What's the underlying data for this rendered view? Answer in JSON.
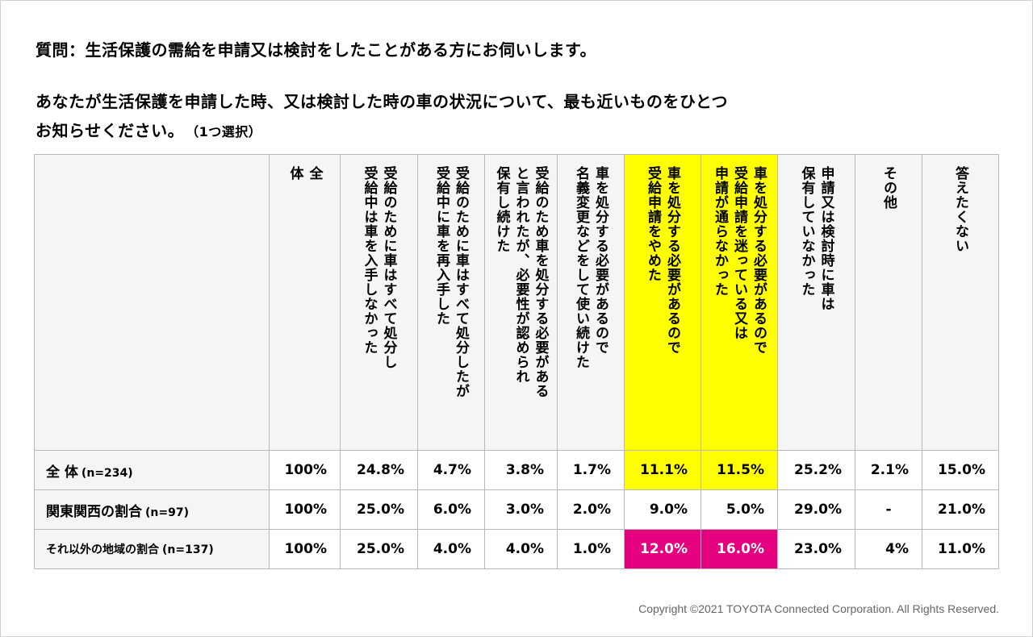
{
  "question_line1": "質問：生活保護の需給を申請又は検討をしたことがある方にお伺いします。",
  "question_line2": "あなたが生活保護を申請した時、又は検討した時の車の状況について、最も近いものをひとつ",
  "question_line3": "お知らせください。",
  "question_note": "（1つ選択）",
  "columns": [
    {
      "lines": [
        "全",
        "体"
      ]
    },
    {
      "lines": [
        "受給のために車はすべて処分し",
        "受給中は車を入手しなかった"
      ]
    },
    {
      "lines": [
        "受給のために車はすべて処分したが",
        "受給中に車を再入手した"
      ]
    },
    {
      "lines": [
        "受給のため車を処分する必要がある",
        "と言われたが、必要性が認められ",
        "保有し続けた"
      ]
    },
    {
      "lines": [
        "車を処分する必要があるので",
        "名義変更などをして使い続けた"
      ]
    },
    {
      "lines": [
        "車を処分する必要があるので",
        "受給申請をやめた"
      ],
      "highlight": "yellow"
    },
    {
      "lines": [
        "車を処分する必要があるので",
        "受給申請を迷っている又は",
        "申請が通らなかった"
      ],
      "highlight": "yellow"
    },
    {
      "lines": [
        "申請又は検討時に車は",
        "保有していなかった"
      ]
    },
    {
      "lines": [
        "その他"
      ]
    },
    {
      "lines": [
        "答えたくない"
      ]
    }
  ],
  "rows": [
    {
      "label": "全 体",
      "n": "(n=234)",
      "values": [
        "100%",
        "24.8%",
        "4.7%",
        "3.8%",
        "1.7%",
        "11.1%",
        "11.5%",
        "25.2%",
        "2.1%",
        "15.0%"
      ]
    },
    {
      "label": "関東関西の割合",
      "n": "(n=97)",
      "values": [
        "100%",
        "25.0%",
        "6.0%",
        "3.0%",
        "2.0%",
        "9.0%",
        "5.0%",
        "29.0%",
        "-",
        "21.0%"
      ]
    },
    {
      "label": "それ以外の地域の割合",
      "n": "(n=137)",
      "values": [
        "100%",
        "25.0%",
        "4.0%",
        "4.0%",
        "1.0%",
        "12.0%",
        "16.0%",
        "23.0%",
        "4%",
        "11.0%"
      ]
    }
  ],
  "colors": {
    "yellow": "#ffff00",
    "magenta": "#e4007f",
    "header_bg": "#f5f5f5"
  },
  "copyright": "Copyright ©2021 TOYOTA Connected Corporation. All Rights Reserved."
}
